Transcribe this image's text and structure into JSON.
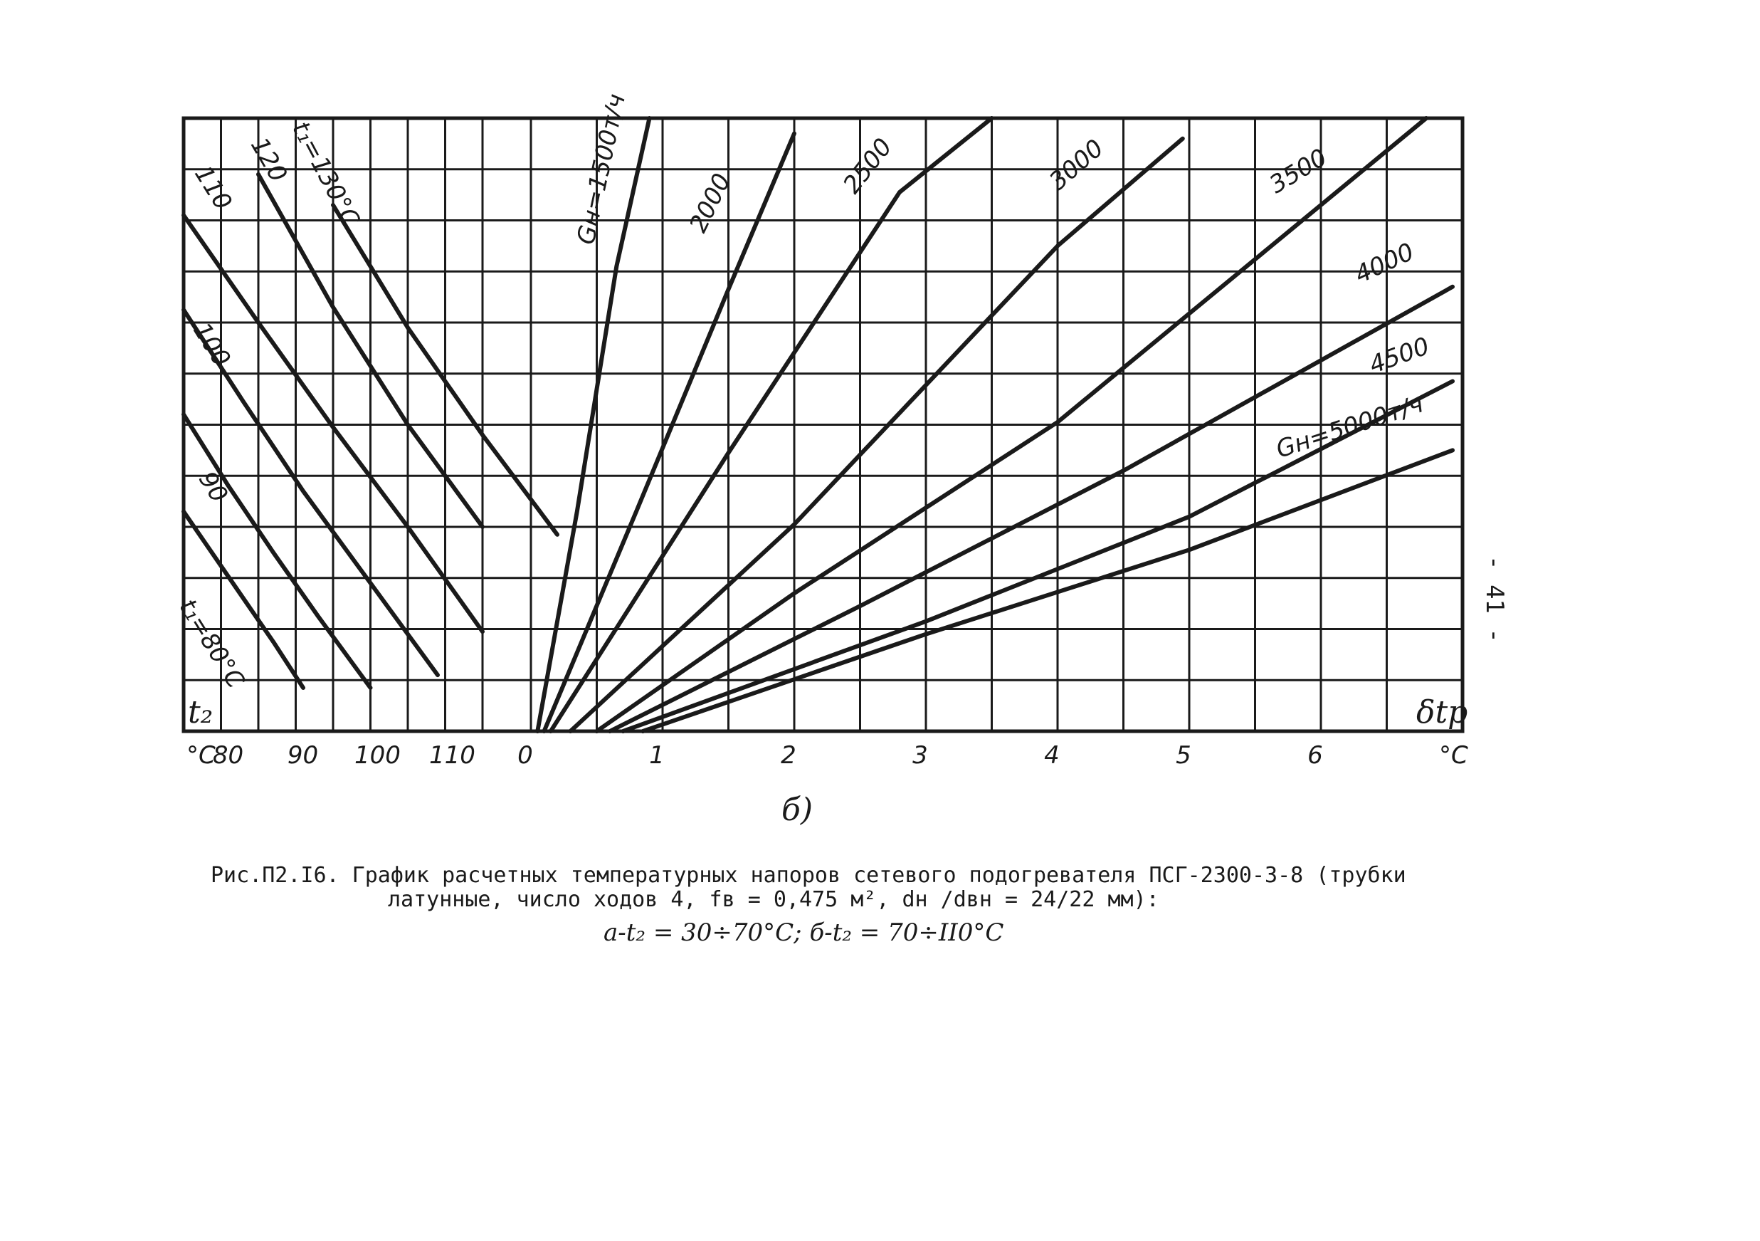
{
  "page_number": "- 41 -",
  "sublabel": "б)",
  "caption": {
    "line1": "Рис.П2.I6. График расчетных температурных напоров сетевого подогревателя ПСГ-2300-3-8 (трубки",
    "line2": "латунные, число ходов 4, fв = 0,475 м², dн /dвн = 24/22 мм):",
    "line3": "а-t₂ = 30÷70°С; б-t₂ = 70÷II0°С"
  },
  "chart_data": [
    {
      "type": "line",
      "title": "",
      "xlabel": "t₂",
      "x_unit": "°С",
      "x_ticks": [
        "80",
        "90",
        "100",
        "110"
      ],
      "xlim": [
        70,
        110
      ],
      "ylabel": "",
      "grid": true,
      "series": [
        {
          "name": "t₁=80°С",
          "label_angle": 58,
          "x": [
            70,
            74,
            78,
            82,
            86
          ],
          "y": [
            0.86,
            0.69,
            0.52,
            0.35,
            0.17
          ]
        },
        {
          "name": "90",
          "label_angle": 58,
          "x": [
            70,
            76,
            82,
            88,
            95
          ],
          "y": [
            1.24,
            0.96,
            0.7,
            0.45,
            0.17
          ]
        },
        {
          "name": "100",
          "label_angle": 58,
          "x": [
            70,
            78,
            86,
            95,
            104
          ],
          "y": [
            1.65,
            1.29,
            0.94,
            0.58,
            0.22
          ]
        },
        {
          "name": "110",
          "label_angle": 58,
          "x": [
            70,
            80,
            90,
            100,
            110
          ],
          "y": [
            2.02,
            1.6,
            1.19,
            0.8,
            0.39
          ]
        },
        {
          "name": "120",
          "label_angle": 60,
          "x": [
            80,
            90,
            100,
            110
          ],
          "y": [
            2.18,
            1.66,
            1.2,
            0.8
          ]
        },
        {
          "name": "t₁=130°С",
          "label_angle": 62,
          "x": [
            90,
            100,
            110,
            120
          ],
          "y": [
            2.06,
            1.58,
            1.16,
            0.77
          ]
        }
      ]
    },
    {
      "type": "line",
      "title": "",
      "xlabel": "δtр",
      "x_unit": "°С",
      "x_ticks": [
        "0",
        "1",
        "2",
        "3",
        "4",
        "5",
        "6"
      ],
      "xlim": [
        0,
        7
      ],
      "ylabel": "",
      "grid": true,
      "series": [
        {
          "name": "Gн=1500т/ч",
          "label_angle": -78,
          "x": [
            0.05,
            0.35,
            0.65,
            0.9
          ],
          "y": [
            0.0,
            0.86,
            1.82,
            2.48
          ]
        },
        {
          "name": "2000",
          "label_angle": -64,
          "x": [
            0.1,
            0.8,
            1.5,
            2.0
          ],
          "y": [
            0.0,
            0.86,
            1.73,
            2.34
          ]
        },
        {
          "name": "2500",
          "label_angle": -52,
          "x": [
            0.15,
            1.5,
            2.8,
            3.5
          ],
          "y": [
            0.0,
            1.09,
            2.11,
            2.64
          ]
        },
        {
          "name": "3000",
          "label_angle": -41,
          "x": [
            0.3,
            2.0,
            4.0,
            4.95
          ],
          "y": [
            0.0,
            0.81,
            1.9,
            2.32
          ]
        },
        {
          "name": "3500",
          "label_angle": -31,
          "x": [
            0.5,
            2.0,
            4.0,
            6.8
          ],
          "y": [
            0.0,
            0.54,
            1.21,
            2.41
          ]
        },
        {
          "name": "4000",
          "label_angle": -25,
          "x": [
            0.6,
            2.5,
            4.5,
            7.0
          ],
          "y": [
            0.0,
            0.49,
            1.02,
            1.74
          ]
        },
        {
          "name": "4500",
          "label_angle": -20,
          "x": [
            0.7,
            3.0,
            5.0,
            7.0
          ],
          "y": [
            0.0,
            0.43,
            0.84,
            1.37
          ]
        },
        {
          "name": "Gн=5000т/ч",
          "label_angle": -18,
          "x": [
            0.85,
            3.0,
            5.0,
            7.0
          ],
          "y": [
            0.0,
            0.38,
            0.71,
            1.1
          ]
        }
      ]
    }
  ]
}
